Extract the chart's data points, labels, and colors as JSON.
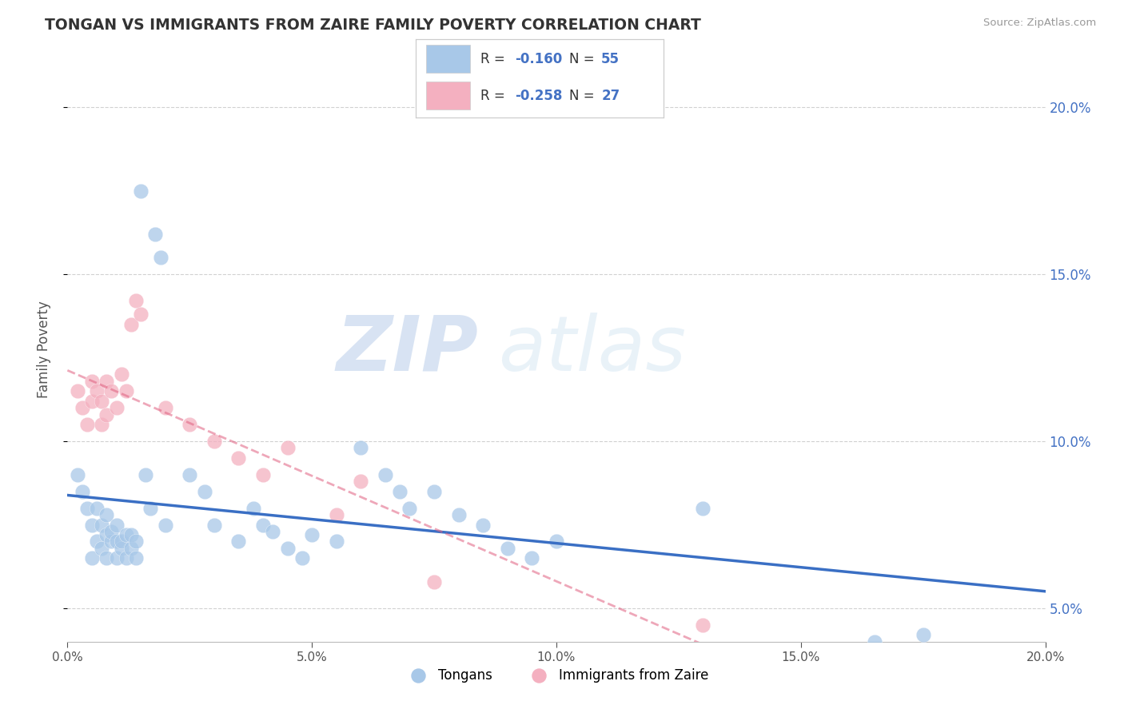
{
  "title": "TONGAN VS IMMIGRANTS FROM ZAIRE FAMILY POVERTY CORRELATION CHART",
  "source": "Source: ZipAtlas.com",
  "ylabel": "Family Poverty",
  "legend_label1": "Tongans",
  "legend_label2": "Immigrants from Zaire",
  "R1": -0.16,
  "N1": 55,
  "R2": -0.258,
  "N2": 27,
  "xlim": [
    0.0,
    0.2
  ],
  "ylim": [
    0.04,
    0.215
  ],
  "color1": "#a8c8e8",
  "color2": "#f4b0c0",
  "trendline1_color": "#3a6fc4",
  "trendline2_color": "#e06080",
  "background_color": "#ffffff",
  "grid_color": "#cccccc",
  "watermark_zip": "ZIP",
  "watermark_atlas": "atlas",
  "tongans_x": [
    0.002,
    0.003,
    0.004,
    0.005,
    0.005,
    0.006,
    0.006,
    0.007,
    0.007,
    0.008,
    0.008,
    0.008,
    0.009,
    0.009,
    0.01,
    0.01,
    0.01,
    0.011,
    0.011,
    0.012,
    0.012,
    0.013,
    0.013,
    0.014,
    0.014,
    0.015,
    0.016,
    0.017,
    0.018,
    0.019,
    0.02,
    0.025,
    0.028,
    0.03,
    0.035,
    0.038,
    0.04,
    0.042,
    0.045,
    0.048,
    0.05,
    0.055,
    0.06,
    0.065,
    0.068,
    0.07,
    0.075,
    0.08,
    0.085,
    0.09,
    0.095,
    0.1,
    0.13,
    0.165,
    0.175
  ],
  "tongans_y": [
    0.09,
    0.085,
    0.08,
    0.075,
    0.065,
    0.07,
    0.08,
    0.068,
    0.075,
    0.065,
    0.072,
    0.078,
    0.07,
    0.073,
    0.065,
    0.07,
    0.075,
    0.068,
    0.07,
    0.065,
    0.072,
    0.068,
    0.072,
    0.065,
    0.07,
    0.175,
    0.09,
    0.08,
    0.162,
    0.155,
    0.075,
    0.09,
    0.085,
    0.075,
    0.07,
    0.08,
    0.075,
    0.073,
    0.068,
    0.065,
    0.072,
    0.07,
    0.098,
    0.09,
    0.085,
    0.08,
    0.085,
    0.078,
    0.075,
    0.068,
    0.065,
    0.07,
    0.08,
    0.04,
    0.042
  ],
  "zaire_x": [
    0.002,
    0.003,
    0.004,
    0.005,
    0.005,
    0.006,
    0.007,
    0.007,
    0.008,
    0.008,
    0.009,
    0.01,
    0.011,
    0.012,
    0.013,
    0.014,
    0.015,
    0.02,
    0.025,
    0.03,
    0.035,
    0.04,
    0.045,
    0.055,
    0.06,
    0.075,
    0.13
  ],
  "zaire_y": [
    0.115,
    0.11,
    0.105,
    0.118,
    0.112,
    0.115,
    0.105,
    0.112,
    0.118,
    0.108,
    0.115,
    0.11,
    0.12,
    0.115,
    0.135,
    0.142,
    0.138,
    0.11,
    0.105,
    0.1,
    0.095,
    0.09,
    0.098,
    0.078,
    0.088,
    0.058,
    0.045
  ]
}
